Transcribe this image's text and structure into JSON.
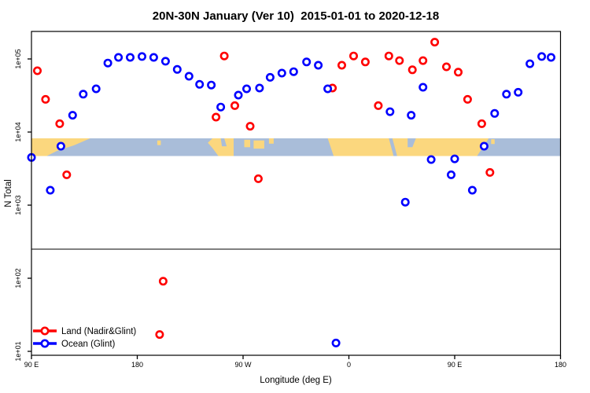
{
  "title": "20N-30N January (Ver 10)  2015-01-01 to 2020-12-18",
  "chart_data": {
    "type": "scatter",
    "title": "20N-30N January (Ver 10)  2015-01-01 to 2020-12-18",
    "xlabel": "Longitude (deg E)",
    "ylabel": "N Total",
    "x_axis": {
      "note": "longitude continues eastward and wraps past the dateline",
      "tick_values": [
        90,
        180,
        270,
        360,
        450,
        540
      ],
      "tick_labels": [
        "90 E",
        "180",
        "90 W",
        "0",
        "90 E",
        "180"
      ],
      "range": [
        90,
        540
      ]
    },
    "y_axis": {
      "scale": "log10",
      "tick_values": [
        10,
        100,
        1000,
        10000,
        100000
      ],
      "tick_labels": [
        "1e+01",
        "1e+02",
        "1e+03",
        "1e+04",
        "1e+05"
      ],
      "range_log10": [
        0.95,
        5.38
      ]
    },
    "grid": false,
    "legend_position": "bottom-left",
    "reference_line": {
      "n": 250,
      "color": "#808080"
    },
    "map_band": {
      "n_top": 8200,
      "n_bottom": 4700,
      "ocean_color": "#A9BDD9",
      "land_color": "#FBD77E",
      "land_polygons": [
        [
          [
            90,
            0
          ],
          [
            140,
            0
          ],
          [
            126,
            0.4
          ],
          [
            112,
            0.7
          ],
          [
            103,
            1
          ],
          [
            90,
            1
          ]
        ],
        [
          [
            197,
            0.12
          ],
          [
            200,
            0.12
          ],
          [
            200,
            0.38
          ],
          [
            197,
            0.38
          ]
        ],
        [
          [
            240,
            0.25
          ],
          [
            244,
            0
          ],
          [
            262,
            0
          ],
          [
            262,
            1
          ],
          [
            249,
            1
          ],
          [
            244,
            0.55
          ]
        ],
        [
          [
            271,
            0.08
          ],
          [
            276,
            0.08
          ],
          [
            276,
            0.5
          ],
          [
            271,
            0.5
          ]
        ],
        [
          [
            279,
            0.12
          ],
          [
            288,
            0.12
          ],
          [
            288,
            0.58
          ],
          [
            279,
            0.58
          ]
        ],
        [
          [
            292,
            0
          ],
          [
            296,
            0
          ],
          [
            296,
            0.3
          ],
          [
            292,
            0.3
          ]
        ],
        [
          [
            342,
            0
          ],
          [
            479,
            0
          ],
          [
            473,
            0.6
          ],
          [
            469,
            1
          ],
          [
            347,
            1
          ]
        ],
        [
          [
            481,
            0.05
          ],
          [
            484,
            0.05
          ],
          [
            484,
            0.32
          ],
          [
            481,
            0.32
          ]
        ]
      ],
      "water_polygons": [
        [
          [
            394,
            0
          ],
          [
            397,
            0
          ],
          [
            401,
            1
          ],
          [
            398,
            1
          ]
        ],
        [
          [
            410,
            0
          ],
          [
            417,
            0
          ],
          [
            414,
            0.5
          ],
          [
            410,
            0.5
          ]
        ],
        [
          [
            251,
            0
          ],
          [
            254,
            0
          ],
          [
            256,
            0.45
          ],
          [
            252,
            0.45
          ]
        ]
      ]
    },
    "series": [
      {
        "name": "Land (Nadir&Glint)",
        "color": "#FF0000",
        "marker": "open-circle",
        "points": [
          [
            95,
            69000
          ],
          [
            102,
            28000
          ],
          [
            114,
            13000
          ],
          [
            120,
            2600
          ],
          [
            254,
            110000
          ],
          [
            247,
            16000
          ],
          [
            263,
            23000
          ],
          [
            276,
            12000
          ],
          [
            283,
            2300
          ],
          [
            346,
            40000
          ],
          [
            354,
            82000
          ],
          [
            364,
            110000
          ],
          [
            374,
            91000
          ],
          [
            385,
            23000
          ],
          [
            394,
            110000
          ],
          [
            403,
            95000
          ],
          [
            414,
            71000
          ],
          [
            423,
            95000
          ],
          [
            433,
            170000
          ],
          [
            443,
            78000
          ],
          [
            453,
            66000
          ],
          [
            461,
            28000
          ],
          [
            473,
            13000
          ],
          [
            480,
            2800
          ],
          [
            202,
            91
          ],
          [
            199,
            17
          ]
        ]
      },
      {
        "name": "Ocean (Glint)",
        "color": "#0000FF",
        "marker": "open-circle",
        "points": [
          [
            90,
            4500
          ],
          [
            115,
            6400
          ],
          [
            106,
            1600
          ],
          [
            125,
            17000
          ],
          [
            134,
            33000
          ],
          [
            145,
            39000
          ],
          [
            155,
            88000
          ],
          [
            164,
            105000
          ],
          [
            174,
            105000
          ],
          [
            184,
            108000
          ],
          [
            194,
            105000
          ],
          [
            204,
            93000
          ],
          [
            214,
            72000
          ],
          [
            224,
            58000
          ],
          [
            233,
            45000
          ],
          [
            243,
            44000
          ],
          [
            251,
            22000
          ],
          [
            266,
            32000
          ],
          [
            273,
            39000
          ],
          [
            284,
            40000
          ],
          [
            293,
            56000
          ],
          [
            303,
            64000
          ],
          [
            313,
            67000
          ],
          [
            324,
            91000
          ],
          [
            334,
            82000
          ],
          [
            342,
            39000
          ],
          [
            395,
            19000
          ],
          [
            413,
            17000
          ],
          [
            423,
            41000
          ],
          [
            430,
            4200
          ],
          [
            408,
            1100
          ],
          [
            450,
            4300
          ],
          [
            447,
            2600
          ],
          [
            465,
            1600
          ],
          [
            475,
            6400
          ],
          [
            484,
            18000
          ],
          [
            494,
            33000
          ],
          [
            504,
            35000
          ],
          [
            514,
            86000
          ],
          [
            524,
            108000
          ],
          [
            532,
            105000
          ],
          [
            349,
            13
          ]
        ]
      }
    ]
  }
}
